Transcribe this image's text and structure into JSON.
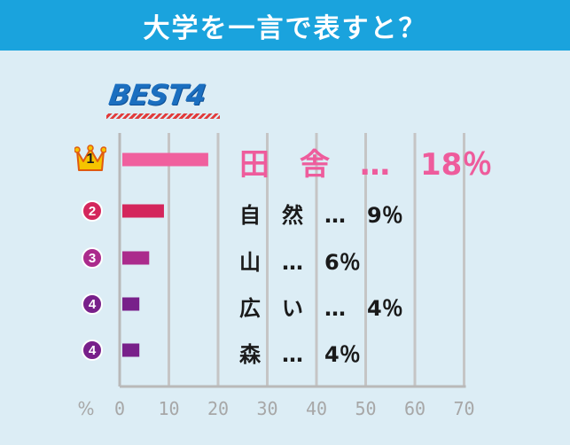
{
  "header": {
    "title": "大学を一言で表すと？"
  },
  "badge": {
    "text": "BEST4"
  },
  "colors": {
    "header_bg": "#1aa3dd",
    "page_bg": "#dcedf5",
    "grid": "#c5c5c5",
    "axis": "#b9b9b9",
    "tick_label": "#a7a7a7",
    "rank_colors": [
      "#f0609e",
      "#d4265c",
      "#ab2b8c",
      "#78208a",
      "#78208a"
    ]
  },
  "chart_data": {
    "type": "bar",
    "orientation": "horizontal",
    "categories": [
      "田　舎",
      "自　然",
      "山",
      "広　い",
      "森"
    ],
    "values": [
      18,
      9,
      6,
      4,
      4
    ],
    "ranks": [
      "1",
      "2",
      "3",
      "4",
      "4"
    ],
    "labels": [
      "田　舎　…　18％",
      "自　然　…　9％",
      "山　…　6％",
      "広　い　…　4％",
      "森　…　4％"
    ],
    "xlabel": "%",
    "xlim": [
      0,
      70
    ],
    "xticks": [
      0,
      10,
      20,
      30,
      40,
      50,
      60,
      70
    ],
    "grid": true
  }
}
